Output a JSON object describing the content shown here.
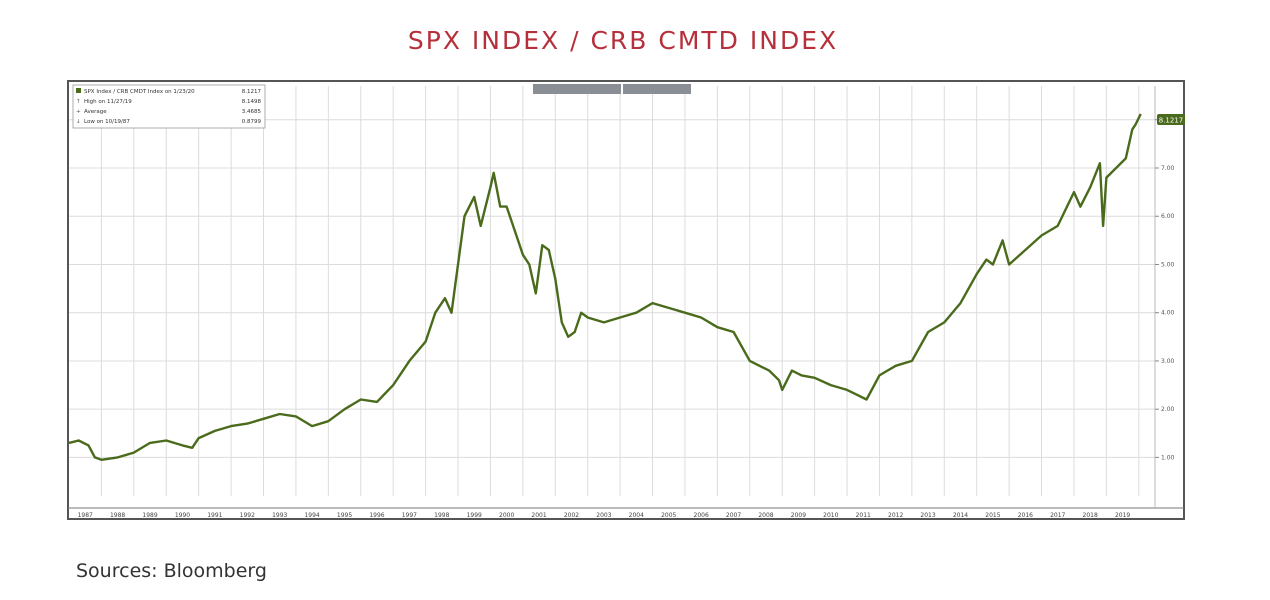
{
  "page": {
    "title": "SPX INDEX / CRB CMTD INDEX",
    "source": "Sources: Bloomberg"
  },
  "colors": {
    "title": "#b5303b",
    "line": "#4a6b1c",
    "grid": "#dcdcdc",
    "legend_bg": "#ffffff"
  },
  "legend": {
    "rows": [
      {
        "label": "SPX Index / CRB CMDT Index on 1/23/20",
        "value": "8.1217"
      },
      {
        "label": "High on 11/27/19",
        "value": "8.1498"
      },
      {
        "label": "Average",
        "value": "3.4685"
      },
      {
        "label": "Low on 10/19/87",
        "value": "0.8799"
      }
    ]
  },
  "chart_data": {
    "type": "line",
    "title": "SPX INDEX / CRB CMTD INDEX",
    "xlabel": "",
    "ylabel": "",
    "xlim": [
      1987.0,
      2020.5
    ],
    "ylim": [
      0.2,
      8.7
    ],
    "grid": true,
    "legend_position": "top-left",
    "last_value_label": "8.1217",
    "x_ticks": [
      "1987",
      "1988",
      "1989",
      "1990",
      "1991",
      "1992",
      "1993",
      "1994",
      "1995",
      "1996",
      "1997",
      "1998",
      "1999",
      "2000",
      "2001",
      "2002",
      "2003",
      "2004",
      "2005",
      "2006",
      "2007",
      "2008",
      "2009",
      "2010",
      "2011",
      "2012",
      "2013",
      "2014",
      "2015",
      "2016",
      "2017",
      "2018",
      "2019"
    ],
    "y_ticks": [
      "1.00",
      "2.00",
      "3.00",
      "4.00",
      "5.00",
      "6.00",
      "7.00",
      "8.00"
    ],
    "y_tick_values": [
      1,
      2,
      3,
      4,
      5,
      6,
      7,
      8
    ],
    "series": [
      {
        "x": [
          1987.0,
          1987.3,
          1987.6,
          1987.8,
          1988.0,
          1988.5,
          1989.0,
          1989.5,
          1990.0,
          1990.5,
          1990.8,
          1991.0,
          1991.5,
          1992.0,
          1992.5,
          1993.0,
          1993.5,
          1994.0,
          1994.5,
          1995.0,
          1995.5,
          1996.0,
          1996.5,
          1997.0,
          1997.5,
          1998.0,
          1998.3,
          1998.6,
          1998.8,
          1999.0,
          1999.2,
          1999.5,
          1999.7,
          2000.0,
          2000.1,
          2000.3,
          2000.5,
          2000.8,
          2001.0,
          2001.2,
          2001.4,
          2001.6,
          2001.8,
          2002.0,
          2002.2,
          2002.4,
          2002.6,
          2002.8,
          2003.0,
          2003.5,
          2004.0,
          2004.5,
          2005.0,
          2005.5,
          2006.0,
          2006.5,
          2007.0,
          2007.5,
          2008.0,
          2008.3,
          2008.6,
          2008.9,
          2009.0,
          2009.3,
          2009.6,
          2010.0,
          2010.5,
          2011.0,
          2011.3,
          2011.6,
          2011.8,
          2012.0,
          2012.5,
          2013.0,
          2013.5,
          2014.0,
          2014.5,
          2015.0,
          2015.3,
          2015.5,
          2015.8,
          2016.0,
          2016.5,
          2017.0,
          2017.5,
          2018.0,
          2018.2,
          2018.5,
          2018.8,
          2018.9,
          2019.0,
          2019.3,
          2019.6,
          2019.8,
          2019.9,
          2020.06
        ],
        "y": [
          1.3,
          1.35,
          1.25,
          1.0,
          0.95,
          1.0,
          1.1,
          1.3,
          1.35,
          1.25,
          1.2,
          1.4,
          1.55,
          1.65,
          1.7,
          1.8,
          1.9,
          1.85,
          1.65,
          1.75,
          2.0,
          2.2,
          2.15,
          2.5,
          3.0,
          3.4,
          4.0,
          4.3,
          4.0,
          5.0,
          6.0,
          6.4,
          5.8,
          6.6,
          6.9,
          6.2,
          6.2,
          5.6,
          5.2,
          5.0,
          4.4,
          5.4,
          5.3,
          4.7,
          3.8,
          3.5,
          3.6,
          4.0,
          3.9,
          3.8,
          3.9,
          4.0,
          4.2,
          4.1,
          4.0,
          3.9,
          3.7,
          3.6,
          3.0,
          2.9,
          2.8,
          2.6,
          2.4,
          2.8,
          2.7,
          2.65,
          2.5,
          2.4,
          2.3,
          2.2,
          2.45,
          2.7,
          2.9,
          3.0,
          3.6,
          3.8,
          4.2,
          4.8,
          5.1,
          5.0,
          5.5,
          5.0,
          5.3,
          5.6,
          5.8,
          6.5,
          6.2,
          6.6,
          7.1,
          5.8,
          6.8,
          7.0,
          7.2,
          7.8,
          7.9,
          8.12
        ]
      }
    ]
  }
}
